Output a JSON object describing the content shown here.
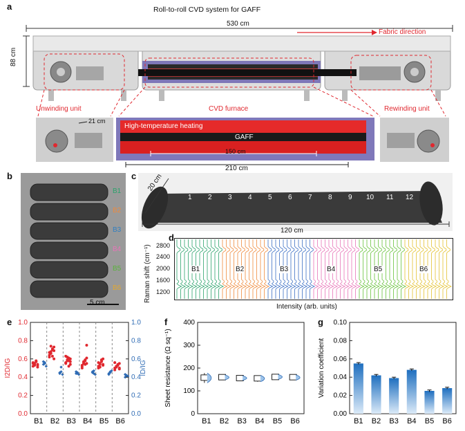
{
  "panel_labels": {
    "a": "a",
    "b": "b",
    "c": "c",
    "d": "d",
    "e": "e",
    "f": "f",
    "g": "g"
  },
  "panel_a": {
    "title": "Roll-to-roll CVD system for GAFF",
    "width_label": "530 cm",
    "height_label": "88 cm",
    "direction_label": "Fabric direction",
    "unwinding_label": "Unwinding unit",
    "furnace_label": "CVD furnace",
    "rewinding_label": "Rewinding unit",
    "gap_label": "21 cm",
    "heating_label": "High-temperature heating",
    "gaff_label": "GAFF",
    "len150_label": "150 cm",
    "len210_label": "210 cm"
  },
  "panel_b": {
    "rolls": [
      {
        "label": "B1",
        "color": "#2ba36b"
      },
      {
        "label": "B2",
        "color": "#ef8a3c"
      },
      {
        "label": "B3",
        "color": "#2f7fc1"
      },
      {
        "label": "B4",
        "color": "#e874b8"
      },
      {
        "label": "B5",
        "color": "#58b33a"
      },
      {
        "label": "B6",
        "color": "#e3a72f"
      }
    ],
    "scale_label": "5 cm"
  },
  "panel_c": {
    "points": [
      "1",
      "2",
      "3",
      "4",
      "5",
      "6",
      "7",
      "8",
      "9",
      "10",
      "11",
      "12"
    ],
    "width_label": "20 cm",
    "length_label": "120 cm"
  },
  "panel_d": {
    "ylabel": "Raman shift (cm⁻¹)",
    "xlabel": "Intensity (arb. units)",
    "yticks": [
      "2800",
      "2400",
      "2000",
      "1600",
      "1200"
    ],
    "groups": [
      {
        "label": "B1",
        "color": "#2ba36b"
      },
      {
        "label": "B2",
        "color": "#ef8a3c"
      },
      {
        "label": "B3",
        "color": "#3b6fc4"
      },
      {
        "label": "B4",
        "color": "#e874b8"
      },
      {
        "label": "B5",
        "color": "#67c23a"
      },
      {
        "label": "B6",
        "color": "#e3c12f"
      }
    ]
  },
  "chart_data": [
    {
      "type": "scatter",
      "panel": "e",
      "categories": [
        "B1",
        "B2",
        "B3",
        "B4",
        "B5",
        "B6"
      ],
      "ylabel_left": "I2D/IG",
      "ylabel_right": "ID/IG",
      "ylim": [
        0.0,
        1.0
      ],
      "yticks": [
        "0.0",
        "0.2",
        "0.4",
        "0.6",
        "0.8",
        "1.0"
      ],
      "left_color": "#e0282f",
      "right_color": "#2f6cb5",
      "series": [
        {
          "name": "I2D/IG",
          "values": [
            [
              0.52,
              0.55,
              0.57,
              0.53,
              0.56,
              0.54,
              0.58,
              0.51,
              0.55,
              0.53,
              0.57,
              0.54
            ],
            [
              0.62,
              0.66,
              0.7,
              0.73,
              0.64,
              0.68,
              0.71,
              0.6,
              0.67,
              0.74,
              0.63,
              0.69
            ],
            [
              0.55,
              0.58,
              0.61,
              0.57,
              0.63,
              0.59,
              0.52,
              0.6,
              0.56,
              0.62,
              0.58,
              0.54
            ],
            [
              0.52,
              0.55,
              0.58,
              0.75,
              0.5,
              0.57,
              0.54,
              0.61,
              0.53,
              0.56,
              0.59,
              0.55
            ],
            [
              0.5,
              0.54,
              0.57,
              0.6,
              0.52,
              0.55,
              0.58,
              0.53,
              0.56,
              0.51,
              0.59,
              0.54
            ],
            [
              0.48,
              0.51,
              0.53,
              0.55,
              0.5,
              0.52,
              0.54,
              0.49,
              0.56,
              0.51,
              0.53,
              0.5
            ]
          ]
        },
        {
          "name": "ID/IG",
          "values": [
            [
              0.54,
              0.56,
              0.52,
              0.57,
              0.55
            ],
            [
              0.44,
              0.46,
              0.43,
              0.45,
              0.51
            ],
            [
              0.44,
              0.45,
              0.43,
              0.46,
              0.44
            ],
            [
              0.45,
              0.47,
              0.43,
              0.46,
              0.44
            ],
            [
              0.43,
              0.45,
              0.47,
              0.44,
              0.46
            ],
            [
              0.4,
              0.42,
              0.41,
              0.43,
              0.41
            ]
          ]
        }
      ]
    },
    {
      "type": "box",
      "panel": "f",
      "categories": [
        "B1",
        "B2",
        "B3",
        "B4",
        "B5",
        "B6"
      ],
      "ylabel": "Sheet resistance (Ω sq⁻¹)",
      "ylim": [
        0,
        400
      ],
      "yticks": [
        "0",
        "100",
        "200",
        "300",
        "400"
      ],
      "values": [
        158,
        160,
        156,
        155,
        161,
        160
      ],
      "whisker_low": [
        135,
        148,
        146,
        140,
        150,
        147
      ],
      "whisker_high": [
        178,
        170,
        166,
        168,
        172,
        170
      ]
    },
    {
      "type": "bar",
      "panel": "g",
      "categories": [
        "B1",
        "B2",
        "B3",
        "B4",
        "B5",
        "B6"
      ],
      "ylabel": "Variation coefficient",
      "ylim": [
        0.0,
        0.1
      ],
      "yticks": [
        "0.00",
        "0.02",
        "0.04",
        "0.06",
        "0.08",
        "0.10"
      ],
      "values": [
        0.055,
        0.042,
        0.039,
        0.048,
        0.025,
        0.028
      ],
      "errors": [
        0.001,
        0.001,
        0.001,
        0.001,
        0.001,
        0.001
      ]
    }
  ]
}
